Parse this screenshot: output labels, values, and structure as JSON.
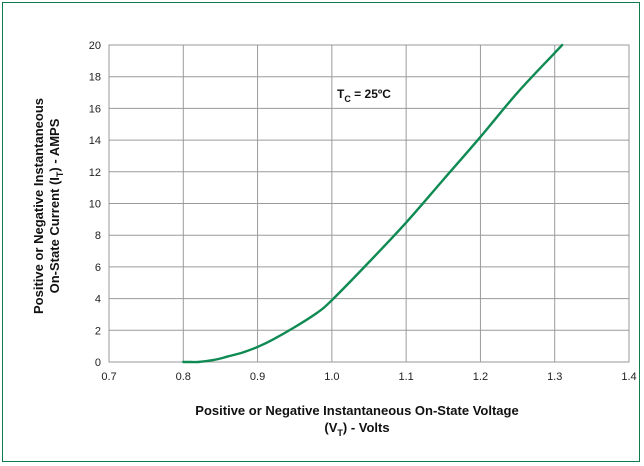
{
  "chart_data": {
    "type": "line",
    "title": "",
    "xlim": [
      0.7,
      1.4
    ],
    "ylim": [
      0,
      20
    ],
    "x_ticks": [
      "0.7",
      "0.8",
      "0.9",
      "1.0",
      "1.1",
      "1.2",
      "1.3",
      "1.4"
    ],
    "y_ticks": [
      "0",
      "2",
      "4",
      "6",
      "8",
      "10",
      "12",
      "14",
      "16",
      "18",
      "20"
    ],
    "xlabel_line1": "Positive or Negative Instantaneous On-State Voltage",
    "xlabel_line2": {
      "pre": "(V",
      "sub": "T",
      "post": ") - Volts"
    },
    "ylabel_line1": "Positive or Negative Instantaneous",
    "ylabel_line2": {
      "pre": "On-State Current (I",
      "sub": "T",
      "post": ") - AMPS"
    },
    "annotation": {
      "pre": "T",
      "sub": "C",
      "post": " = 25ºC"
    },
    "grid": true,
    "line_color": "#0e8a52",
    "series": [
      {
        "x": [
          0.8,
          0.81,
          0.82,
          0.83,
          0.84,
          0.85,
          0.86,
          0.88,
          0.9,
          0.92,
          0.95,
          0.98,
          1.0,
          1.05,
          1.1,
          1.15,
          1.2,
          1.25,
          1.3,
          1.31
        ],
        "y": [
          0.0,
          0.0,
          0.0,
          0.05,
          0.12,
          0.22,
          0.35,
          0.6,
          0.95,
          1.4,
          2.2,
          3.1,
          3.9,
          6.3,
          8.8,
          11.5,
          14.2,
          17.0,
          19.5,
          20.0
        ]
      }
    ]
  }
}
